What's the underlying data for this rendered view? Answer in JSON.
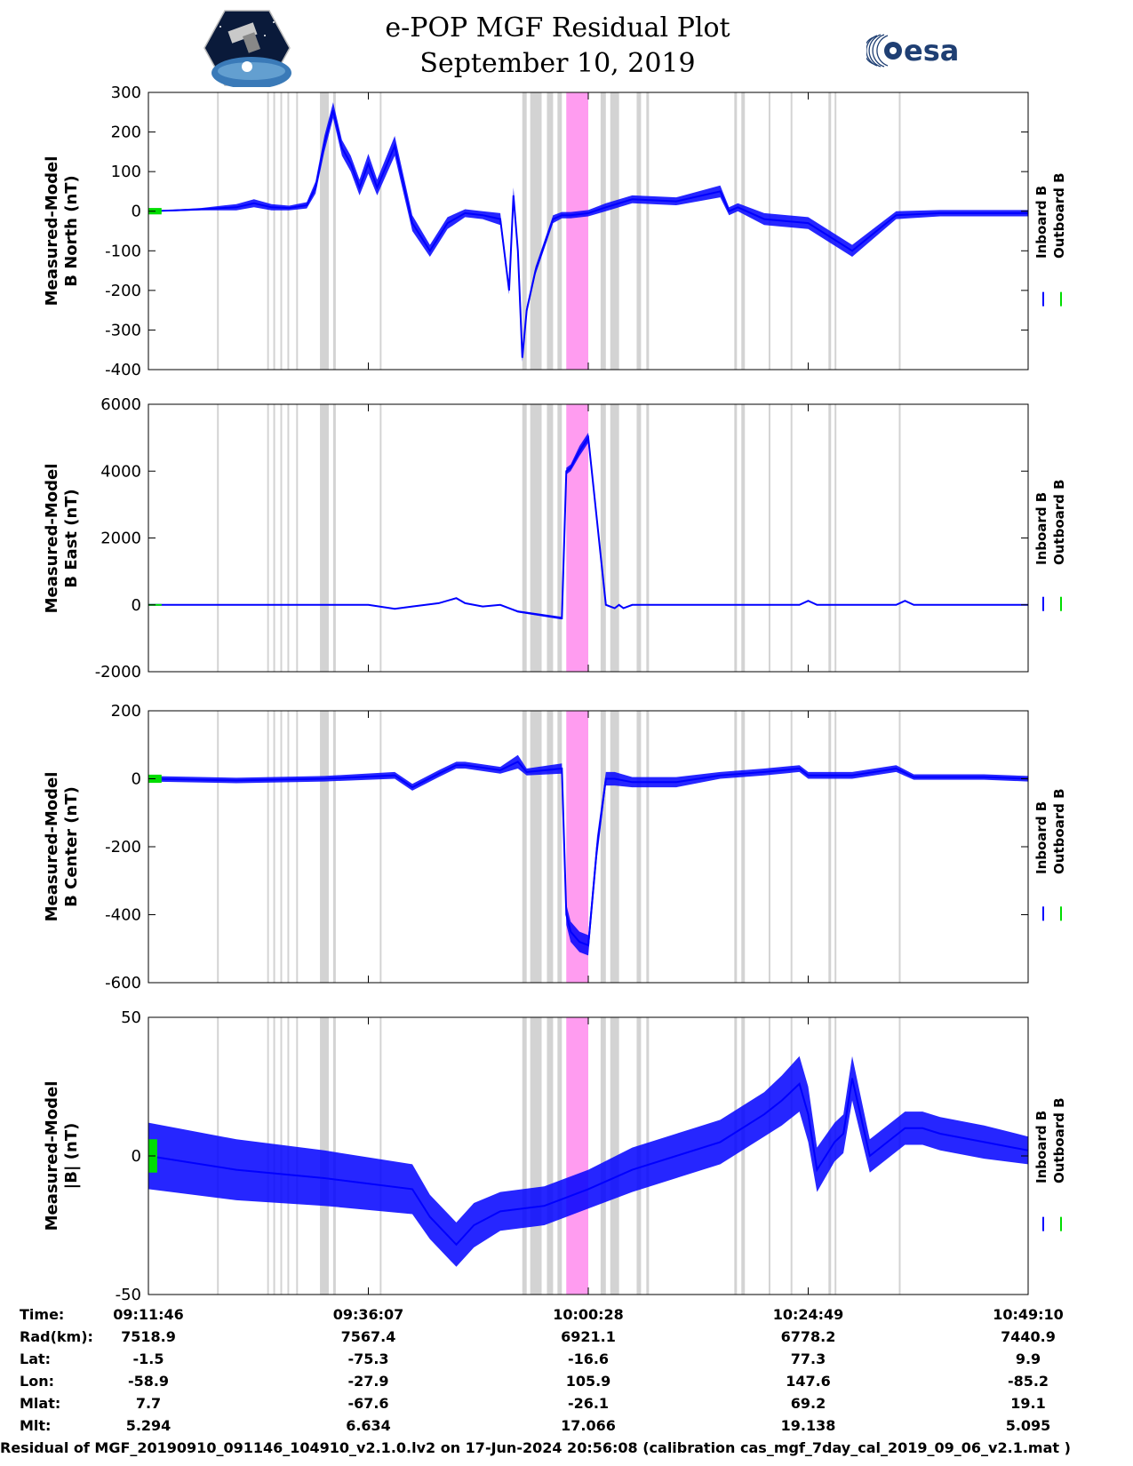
{
  "header": {
    "title": "e-POP MGF Residual Plot",
    "date": "September 10, 2019",
    "left_logo": "cassiope-mission-logo",
    "right_logo": "esa-logo",
    "right_logo_text": "esa"
  },
  "colors": {
    "inboard": "#0000ff",
    "outboard": "#00dd00",
    "gray_band": "#d3d3d3",
    "pink_band": "#ff9cf0"
  },
  "chart_data": [
    {
      "type": "line",
      "ylabel_line1": "Measured-Model",
      "ylabel_line2": "B North (nT)",
      "ylim": [
        -400,
        300
      ],
      "yticks": [
        "300",
        "200",
        "100",
        "0",
        "-100",
        "-200",
        "-300",
        "-400"
      ],
      "ytick_values": [
        300,
        200,
        100,
        0,
        -100,
        -200,
        -300,
        -400
      ],
      "legend": [
        "Inboard B",
        "Outboard B"
      ],
      "series": [
        {
          "name": "Inboard B",
          "x": [
            0,
            3,
            6,
            10,
            12,
            14,
            16,
            18,
            19,
            20,
            21,
            22,
            23,
            24,
            25,
            26,
            28,
            30,
            32,
            34,
            36,
            38,
            40,
            41,
            41.5,
            42,
            42.5,
            43,
            44,
            46,
            47,
            48,
            50,
            52,
            55,
            60,
            65,
            66,
            67,
            70,
            75,
            80,
            85,
            90,
            95,
            100
          ],
          "y": [
            0,
            2,
            5,
            10,
            20,
            10,
            8,
            15,
            60,
            170,
            255,
            160,
            120,
            60,
            120,
            60,
            165,
            -30,
            -100,
            -30,
            -5,
            -10,
            -20,
            -200,
            40,
            -100,
            -370,
            -250,
            -150,
            -20,
            -10,
            -10,
            -5,
            10,
            30,
            25,
            50,
            0,
            10,
            -20,
            -30,
            -100,
            -10,
            -5,
            -5,
            -5
          ],
          "band": [
            0,
            2,
            3,
            8,
            10,
            8,
            6,
            8,
            15,
            20,
            20,
            20,
            20,
            20,
            25,
            20,
            25,
            20,
            15,
            15,
            10,
            10,
            15,
            10,
            20,
            15,
            10,
            10,
            10,
            10,
            8,
            8,
            8,
            10,
            10,
            10,
            15,
            10,
            10,
            15,
            15,
            15,
            10,
            8,
            8,
            8
          ]
        },
        {
          "name": "Outboard B",
          "x": [
            0,
            1.5
          ],
          "y": [
            0,
            0
          ],
          "band": [
            8,
            8
          ]
        }
      ]
    },
    {
      "type": "line",
      "ylabel_line1": "Measured-Model",
      "ylabel_line2": "B East (nT)",
      "ylim": [
        -2000,
        6000
      ],
      "yticks": [
        "6000",
        "4000",
        "2000",
        "0",
        "-2000"
      ],
      "ytick_values": [
        6000,
        4000,
        2000,
        0,
        -2000
      ],
      "legend": [
        "Inboard B",
        "Outboard B"
      ],
      "series": [
        {
          "name": "Inboard B",
          "x": [
            0,
            10,
            20,
            25,
            28,
            30,
            33,
            35,
            36,
            38,
            40,
            42,
            47,
            47.5,
            48,
            49,
            50,
            52,
            53,
            53.5,
            54,
            55,
            60,
            70,
            74,
            75,
            76,
            80,
            85,
            86,
            87,
            90,
            95,
            100
          ],
          "y": [
            0,
            0,
            0,
            0,
            -120,
            -50,
            50,
            200,
            50,
            -50,
            0,
            -200,
            -400,
            4000,
            4100,
            4600,
            5000,
            0,
            -100,
            0,
            -100,
            0,
            0,
            0,
            0,
            120,
            0,
            0,
            0,
            120,
            0,
            0,
            0,
            0
          ],
          "band": [
            10,
            10,
            10,
            10,
            10,
            10,
            10,
            20,
            10,
            10,
            10,
            30,
            40,
            100,
            100,
            150,
            150,
            30,
            20,
            10,
            20,
            10,
            10,
            10,
            10,
            10,
            10,
            10,
            10,
            10,
            10,
            10,
            10,
            10
          ]
        },
        {
          "name": "Outboard B",
          "x": [
            0,
            1.5
          ],
          "y": [
            0,
            0
          ],
          "band": [
            15,
            15
          ]
        }
      ]
    },
    {
      "type": "line",
      "ylabel_line1": "Measured-Model",
      "ylabel_line2": "B Center (nT)",
      "ylim": [
        -600,
        200
      ],
      "yticks": [
        "200",
        "0",
        "-200",
        "-400",
        "-600"
      ],
      "ytick_values": [
        200,
        0,
        -200,
        -400,
        -600
      ],
      "legend": [
        "Inboard B",
        "Outboard B"
      ],
      "series": [
        {
          "name": "Inboard B",
          "x": [
            0,
            10,
            20,
            28,
            30,
            33,
            35,
            36,
            40,
            42,
            43,
            47,
            47.5,
            48,
            49,
            50,
            51,
            52,
            53,
            55,
            60,
            65,
            70,
            74,
            75,
            76,
            80,
            85,
            87,
            90,
            95,
            100
          ],
          "y": [
            0,
            -5,
            0,
            10,
            -25,
            15,
            40,
            40,
            25,
            50,
            20,
            30,
            -400,
            -450,
            -480,
            -490,
            -200,
            0,
            0,
            -10,
            -10,
            10,
            20,
            30,
            10,
            10,
            10,
            30,
            5,
            5,
            5,
            0
          ],
          "band": [
            8,
            8,
            8,
            10,
            10,
            10,
            10,
            10,
            10,
            20,
            10,
            15,
            30,
            30,
            30,
            30,
            30,
            20,
            20,
            15,
            15,
            10,
            10,
            10,
            10,
            10,
            10,
            10,
            8,
            8,
            8,
            8
          ]
        },
        {
          "name": "Outboard B",
          "x": [
            0,
            1.5
          ],
          "y": [
            0,
            0
          ],
          "band": [
            12,
            12
          ]
        }
      ]
    },
    {
      "type": "line",
      "ylabel_line1": "Measured-Model",
      "ylabel_line2": "|B| (nT)",
      "ylim": [
        -50,
        50
      ],
      "yticks": [
        "50",
        "0",
        "-50"
      ],
      "ytick_values": [
        50,
        0,
        -50
      ],
      "legend": [
        "Inboard B",
        "Outboard B"
      ],
      "series": [
        {
          "name": "Inboard B",
          "x": [
            0,
            10,
            20,
            30,
            32,
            35,
            37,
            40,
            45,
            50,
            55,
            60,
            65,
            70,
            72,
            74,
            75,
            76,
            78,
            79,
            80,
            82,
            84,
            86,
            88,
            90,
            95,
            100
          ],
          "y": [
            0,
            -5,
            -8,
            -12,
            -22,
            -32,
            -25,
            -20,
            -18,
            -12,
            -5,
            0,
            5,
            15,
            20,
            26,
            15,
            -5,
            5,
            8,
            28,
            0,
            5,
            10,
            10,
            8,
            5,
            2
          ],
          "band": [
            12,
            11,
            10,
            9,
            8,
            8,
            8,
            7,
            7,
            7,
            8,
            8,
            8,
            8,
            9,
            10,
            10,
            8,
            7,
            7,
            8,
            6,
            6,
            6,
            6,
            6,
            6,
            5
          ]
        },
        {
          "name": "Outboard B",
          "x": [
            0,
            1
          ],
          "y": [
            0,
            0
          ],
          "band": [
            6,
            6
          ]
        }
      ]
    }
  ],
  "shading": {
    "gray_bands": [
      [
        7.8,
        8.0
      ],
      [
        13.5,
        13.7
      ],
      [
        14.2,
        14.4
      ],
      [
        15.0,
        15.2
      ],
      [
        15.8,
        16.0
      ],
      [
        16.8,
        17.0
      ],
      [
        19.5,
        20.5
      ],
      [
        21.0,
        21.3
      ],
      [
        26.3,
        26.5
      ],
      [
        42.5,
        43.0
      ],
      [
        43.4,
        44.7
      ],
      [
        45.3,
        46.0
      ],
      [
        46.5,
        47.0
      ],
      [
        51.4,
        52.0
      ],
      [
        52.5,
        53.5
      ],
      [
        55.5,
        56.0
      ],
      [
        56.6,
        56.9
      ],
      [
        66.6,
        66.9
      ],
      [
        67.4,
        67.8
      ],
      [
        70.5,
        70.7
      ],
      [
        73.0,
        73.2
      ],
      [
        77.3,
        77.6
      ],
      [
        78.0,
        78.2
      ],
      [
        85.3,
        85.5
      ]
    ],
    "pink_bands": [
      [
        47.5,
        50.0
      ]
    ]
  },
  "time_axis": {
    "tick_positions": [
      0,
      25,
      50,
      75,
      100
    ]
  },
  "ephemeris": {
    "labels": [
      "Time:",
      "Rad(km):",
      "Lat:",
      "Lon:",
      "Mlat:",
      "Mlt:"
    ],
    "columns": [
      [
        "09:11:46",
        "7518.9",
        "-1.5",
        "-58.9",
        "7.7",
        "5.294"
      ],
      [
        "09:36:07",
        "7567.4",
        "-75.3",
        "-27.9",
        "-67.6",
        "6.634"
      ],
      [
        "10:00:28",
        "6921.1",
        "-16.6",
        "105.9",
        "-26.1",
        "17.066"
      ],
      [
        "10:24:49",
        "6778.2",
        "77.3",
        "147.6",
        "69.2",
        "19.138"
      ],
      [
        "10:49:10",
        "7440.9",
        "9.9",
        "-85.2",
        "19.1",
        "5.095"
      ]
    ]
  },
  "footer": "Residual of MGF_20190910_091146_104910_v2.1.0.lv2 on 17-Jun-2024 20:56:08 (calibration cas_mgf_7day_cal_2019_09_06_v2.1.mat )"
}
